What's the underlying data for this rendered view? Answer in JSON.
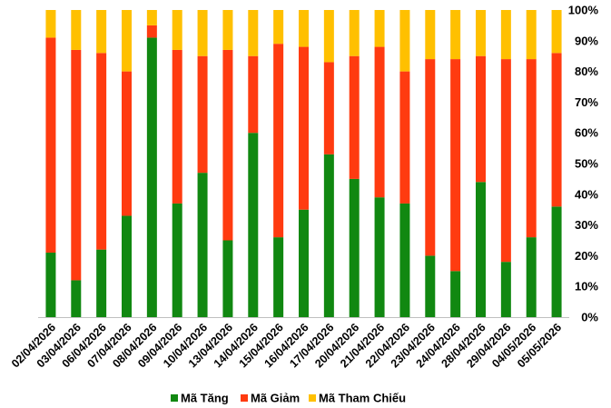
{
  "chart_data": {
    "type": "bar",
    "stacked": true,
    "percent_stacked": true,
    "categories": [
      "02/04/2026",
      "03/04/2026",
      "06/04/2026",
      "07/04/2026",
      "08/04/2026",
      "09/04/2026",
      "10/04/2026",
      "13/04/2026",
      "14/04/2026",
      "15/04/2026",
      "16/04/2026",
      "17/04/2026",
      "20/04/2026",
      "21/04/2026",
      "22/04/2026",
      "23/04/2026",
      "24/04/2026",
      "28/04/2026",
      "29/04/2026",
      "04/05/2026",
      "05/05/2026"
    ],
    "series": [
      {
        "name": "Mã Tăng",
        "color": "#118811",
        "values": [
          21,
          12,
          22,
          33,
          91,
          37,
          47,
          25,
          60,
          26,
          35,
          53,
          45,
          39,
          37,
          20,
          15,
          44,
          18,
          26,
          36
        ]
      },
      {
        "name": "Mã Giảm",
        "color": "#ff3b10",
        "values": [
          70,
          75,
          64,
          47,
          4,
          50,
          38,
          62,
          25,
          63,
          53,
          30,
          40,
          49,
          43,
          64,
          69,
          41,
          66,
          58,
          50
        ]
      },
      {
        "name": "Mã Tham Chiếu",
        "color": "#ffc000",
        "values": [
          9,
          13,
          14,
          20,
          5,
          13,
          15,
          13,
          15,
          11,
          12,
          17,
          15,
          12,
          20,
          16,
          16,
          15,
          16,
          16,
          14
        ]
      }
    ],
    "yaxis": {
      "min": 0,
      "max": 100,
      "position": "right",
      "ticks": [
        "0%",
        "10%",
        "20%",
        "30%",
        "40%",
        "50%",
        "60%",
        "70%",
        "80%",
        "90%",
        "100%"
      ]
    },
    "grid": false,
    "legend_position": "bottom-center",
    "title": "",
    "xlabel": "",
    "ylabel": ""
  }
}
